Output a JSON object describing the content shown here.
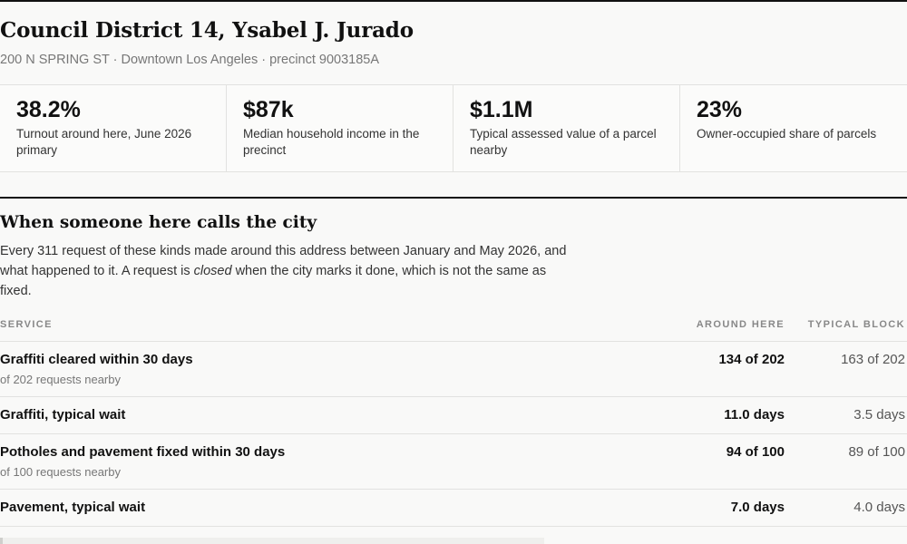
{
  "header": {
    "title": "Council District 14, Ysabel J. Jurado",
    "subtitle": "200 N SPRING ST · Downtown Los Angeles · precinct 9003185A"
  },
  "stats": [
    {
      "value": "38.2%",
      "label": "Turnout around here, June 2026 primary"
    },
    {
      "value": "$87k",
      "label": "Median household income in the precinct"
    },
    {
      "value": "$1.1M",
      "label": "Typical assessed value of a parcel nearby"
    },
    {
      "value": "23%",
      "label": "Owner-occupied share of parcels"
    }
  ],
  "section": {
    "title": "When someone here calls the city",
    "intro_before": "Every 311 request of these kinds made around this address between January and May 2026, and what happened to it. A request is ",
    "intro_em": "closed",
    "intro_after": " when the city marks it done, which is not the same as fixed."
  },
  "table": {
    "headers": {
      "service": "SERVICE",
      "here": "AROUND HERE",
      "block": "TYPICAL BLOCK"
    },
    "rows": [
      {
        "name": "Graffiti cleared within 30 days",
        "sub": "of 202 requests nearby",
        "here": "134 of 202",
        "block": "163 of 202"
      },
      {
        "name": "Graffiti, typical wait",
        "sub": "",
        "here": "11.0 days",
        "block": "3.5 days"
      },
      {
        "name": "Potholes and pavement fixed within 30 days",
        "sub": "of 100 requests nearby",
        "here": "94 of 100",
        "block": "89 of 100"
      },
      {
        "name": "Pavement, typical wait",
        "sub": "",
        "here": "7.0 days",
        "block": "4.0 days"
      }
    ]
  }
}
